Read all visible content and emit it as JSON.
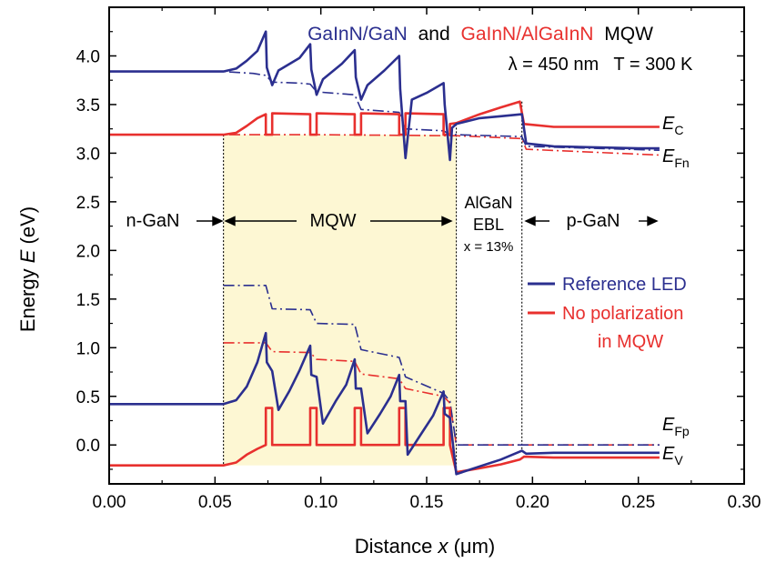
{
  "chart_data": {
    "type": "line",
    "title_parts": [
      "GaInN/GaN",
      "and",
      "GaInN/AlGaInN",
      "MQW"
    ],
    "conditions": "λ = 450 nm   T = 300 K",
    "xlabel_text": "Distance",
    "xlabel_symbol": "x",
    "xlabel_unit": "(μm)",
    "ylabel_text": "Energy",
    "ylabel_symbol": "E",
    "ylabel_unit": "(eV)",
    "xlim": [
      0.0,
      0.3
    ],
    "ylim": [
      -0.4,
      4.5
    ],
    "x_ticks": [
      "0.00",
      "0.05",
      "0.10",
      "0.15",
      "0.20",
      "0.25",
      "0.30"
    ],
    "y_ticks": [
      "0.0",
      "0.5",
      "1.0",
      "1.5",
      "2.0",
      "2.5",
      "3.0",
      "3.5",
      "4.0"
    ],
    "colors": {
      "reference": "#2b2f8f",
      "nopol": "#e8302e",
      "mqw_fill": "#fdf7d3"
    },
    "legend": [
      {
        "label": "Reference LED",
        "color": "#2b2f8f"
      },
      {
        "label": "No polarization",
        "label2": "in MQW",
        "color": "#e8302e"
      }
    ],
    "regions": {
      "n": "n-GaN",
      "mqw": "MQW",
      "ebl1": "AlGaN",
      "ebl2": "EBL",
      "ebl3": "x = 13%",
      "p": "p-GaN"
    },
    "curve_labels": {
      "ec": "C",
      "efn": "Fn",
      "efp": "Fp",
      "ev": "V",
      "base": "E"
    },
    "boundaries_um": [
      0.054,
      0.164,
      0.195
    ],
    "wells_um": [
      [
        0.074,
        0.077
      ],
      [
        0.095,
        0.098
      ],
      [
        0.116,
        0.119
      ],
      [
        0.137,
        0.14
      ],
      [
        0.158,
        0.161
      ]
    ],
    "series": [
      {
        "name": "Reference LED",
        "band": "EC",
        "style": "solid",
        "points": [
          [
            0,
            3.84
          ],
          [
            0.054,
            3.84
          ],
          [
            0.06,
            3.87
          ],
          [
            0.065,
            3.95
          ],
          [
            0.07,
            4.05
          ],
          [
            0.074,
            4.25
          ],
          [
            0.0745,
            3.88
          ],
          [
            0.077,
            3.7
          ],
          [
            0.08,
            3.85
          ],
          [
            0.09,
            3.98
          ],
          [
            0.095,
            4.12
          ],
          [
            0.0955,
            3.86
          ],
          [
            0.098,
            3.6
          ],
          [
            0.101,
            3.76
          ],
          [
            0.11,
            3.92
          ],
          [
            0.116,
            4.06
          ],
          [
            0.1165,
            3.78
          ],
          [
            0.119,
            3.55
          ],
          [
            0.122,
            3.7
          ],
          [
            0.13,
            3.85
          ],
          [
            0.137,
            4.0
          ],
          [
            0.1375,
            3.66
          ],
          [
            0.14,
            2.95
          ],
          [
            0.143,
            3.55
          ],
          [
            0.15,
            3.62
          ],
          [
            0.158,
            3.72
          ],
          [
            0.1585,
            3.5
          ],
          [
            0.161,
            2.93
          ],
          [
            0.162,
            3.26
          ],
          [
            0.164,
            3.3
          ],
          [
            0.175,
            3.36
          ],
          [
            0.185,
            3.38
          ],
          [
            0.195,
            3.4
          ],
          [
            0.197,
            3.1
          ],
          [
            0.21,
            3.07
          ],
          [
            0.25,
            3.05
          ],
          [
            0.26,
            3.05
          ]
        ]
      },
      {
        "name": "Reference LED",
        "band": "EFn",
        "style": "dashdot",
        "points": [
          [
            0,
            3.84
          ],
          [
            0.054,
            3.84
          ],
          [
            0.06,
            3.83
          ],
          [
            0.068,
            3.82
          ],
          [
            0.074,
            3.8
          ],
          [
            0.077,
            3.73
          ],
          [
            0.09,
            3.72
          ],
          [
            0.095,
            3.71
          ],
          [
            0.098,
            3.63
          ],
          [
            0.116,
            3.6
          ],
          [
            0.119,
            3.45
          ],
          [
            0.137,
            3.42
          ],
          [
            0.14,
            3.25
          ],
          [
            0.158,
            3.23
          ],
          [
            0.161,
            3.19
          ],
          [
            0.164,
            3.19
          ],
          [
            0.195,
            3.17
          ],
          [
            0.197,
            3.07
          ],
          [
            0.26,
            3.03
          ]
        ]
      },
      {
        "name": "Reference LED",
        "band": "EV",
        "style": "solid",
        "points": [
          [
            0,
            0.42
          ],
          [
            0.054,
            0.42
          ],
          [
            0.06,
            0.46
          ],
          [
            0.065,
            0.6
          ],
          [
            0.07,
            0.85
          ],
          [
            0.074,
            1.15
          ],
          [
            0.0745,
            0.85
          ],
          [
            0.077,
            0.76
          ],
          [
            0.08,
            0.36
          ],
          [
            0.085,
            0.55
          ],
          [
            0.09,
            0.77
          ],
          [
            0.095,
            1.02
          ],
          [
            0.0955,
            0.72
          ],
          [
            0.098,
            0.7
          ],
          [
            0.101,
            0.22
          ],
          [
            0.107,
            0.45
          ],
          [
            0.112,
            0.62
          ],
          [
            0.116,
            0.88
          ],
          [
            0.1165,
            0.58
          ],
          [
            0.119,
            0.58
          ],
          [
            0.122,
            0.12
          ],
          [
            0.128,
            0.32
          ],
          [
            0.133,
            0.5
          ],
          [
            0.137,
            0.72
          ],
          [
            0.1375,
            0.45
          ],
          [
            0.14,
            0.45
          ],
          [
            0.141,
            -0.1
          ],
          [
            0.147,
            0.1
          ],
          [
            0.153,
            0.3
          ],
          [
            0.158,
            0.55
          ],
          [
            0.1585,
            0.32
          ],
          [
            0.161,
            0.28
          ],
          [
            0.164,
            -0.3
          ],
          [
            0.175,
            -0.22
          ],
          [
            0.185,
            -0.15
          ],
          [
            0.195,
            -0.06
          ],
          [
            0.197,
            -0.09
          ],
          [
            0.21,
            -0.08
          ],
          [
            0.26,
            -0.08
          ]
        ]
      },
      {
        "name": "Reference LED",
        "band": "EFp",
        "style": "dashdot",
        "points": [
          [
            0.054,
            1.64
          ],
          [
            0.074,
            1.64
          ],
          [
            0.077,
            1.4
          ],
          [
            0.095,
            1.39
          ],
          [
            0.098,
            1.25
          ],
          [
            0.116,
            1.24
          ],
          [
            0.119,
            0.98
          ],
          [
            0.137,
            0.9
          ],
          [
            0.14,
            0.7
          ],
          [
            0.158,
            0.53
          ],
          [
            0.161,
            0.45
          ],
          [
            0.164,
            0.0
          ],
          [
            0.26,
            0.0
          ]
        ]
      },
      {
        "name": "No polarization in MQW",
        "band": "EC",
        "style": "solid",
        "points": [
          [
            0,
            3.19
          ],
          [
            0.054,
            3.19
          ],
          [
            0.06,
            3.21
          ],
          [
            0.065,
            3.28
          ],
          [
            0.07,
            3.36
          ],
          [
            0.074,
            3.4
          ],
          [
            0.074,
            3.19
          ],
          [
            0.077,
            3.19
          ],
          [
            0.077,
            3.41
          ],
          [
            0.095,
            3.4
          ],
          [
            0.095,
            3.19
          ],
          [
            0.098,
            3.19
          ],
          [
            0.098,
            3.41
          ],
          [
            0.116,
            3.4
          ],
          [
            0.116,
            3.19
          ],
          [
            0.119,
            3.19
          ],
          [
            0.119,
            3.41
          ],
          [
            0.137,
            3.4
          ],
          [
            0.137,
            3.19
          ],
          [
            0.14,
            3.19
          ],
          [
            0.14,
            3.41
          ],
          [
            0.158,
            3.4
          ],
          [
            0.158,
            3.19
          ],
          [
            0.161,
            3.19
          ],
          [
            0.161,
            3.3
          ],
          [
            0.164,
            3.31
          ],
          [
            0.175,
            3.4
          ],
          [
            0.185,
            3.47
          ],
          [
            0.194,
            3.53
          ],
          [
            0.196,
            3.3
          ],
          [
            0.21,
            3.27
          ],
          [
            0.26,
            3.27
          ]
        ]
      },
      {
        "name": "No polarization in MQW",
        "band": "EFn",
        "style": "dashdot",
        "points": [
          [
            0,
            3.19
          ],
          [
            0.054,
            3.19
          ],
          [
            0.1,
            3.19
          ],
          [
            0.161,
            3.18
          ],
          [
            0.164,
            3.18
          ],
          [
            0.195,
            3.15
          ],
          [
            0.197,
            3.04
          ],
          [
            0.26,
            2.98
          ]
        ]
      },
      {
        "name": "No polarization in MQW",
        "band": "EV",
        "style": "solid",
        "points": [
          [
            0,
            -0.21
          ],
          [
            0.054,
            -0.21
          ],
          [
            0.06,
            -0.18
          ],
          [
            0.065,
            -0.1
          ],
          [
            0.07,
            -0.04
          ],
          [
            0.074,
            0.0
          ],
          [
            0.074,
            0.38
          ],
          [
            0.077,
            0.38
          ],
          [
            0.077,
            0.0
          ],
          [
            0.095,
            0.0
          ],
          [
            0.095,
            0.38
          ],
          [
            0.098,
            0.38
          ],
          [
            0.098,
            0.0
          ],
          [
            0.116,
            0.0
          ],
          [
            0.116,
            0.38
          ],
          [
            0.119,
            0.38
          ],
          [
            0.119,
            0.0
          ],
          [
            0.137,
            0.0
          ],
          [
            0.137,
            0.38
          ],
          [
            0.14,
            0.38
          ],
          [
            0.14,
            0.0
          ],
          [
            0.158,
            0.0
          ],
          [
            0.158,
            0.38
          ],
          [
            0.161,
            0.38
          ],
          [
            0.161,
            0.0
          ],
          [
            0.164,
            -0.28
          ],
          [
            0.175,
            -0.24
          ],
          [
            0.185,
            -0.2
          ],
          [
            0.194,
            -0.15
          ],
          [
            0.196,
            -0.12
          ],
          [
            0.21,
            -0.13
          ],
          [
            0.26,
            -0.13
          ]
        ]
      },
      {
        "name": "No polarization in MQW",
        "band": "EFp",
        "style": "dashdot",
        "points": [
          [
            0.054,
            1.05
          ],
          [
            0.074,
            1.05
          ],
          [
            0.077,
            0.96
          ],
          [
            0.095,
            0.95
          ],
          [
            0.098,
            0.88
          ],
          [
            0.116,
            0.86
          ],
          [
            0.119,
            0.73
          ],
          [
            0.137,
            0.68
          ],
          [
            0.14,
            0.58
          ],
          [
            0.158,
            0.5
          ],
          [
            0.161,
            0.43
          ],
          [
            0.164,
            0.0
          ],
          [
            0.26,
            0.0
          ]
        ]
      }
    ]
  }
}
